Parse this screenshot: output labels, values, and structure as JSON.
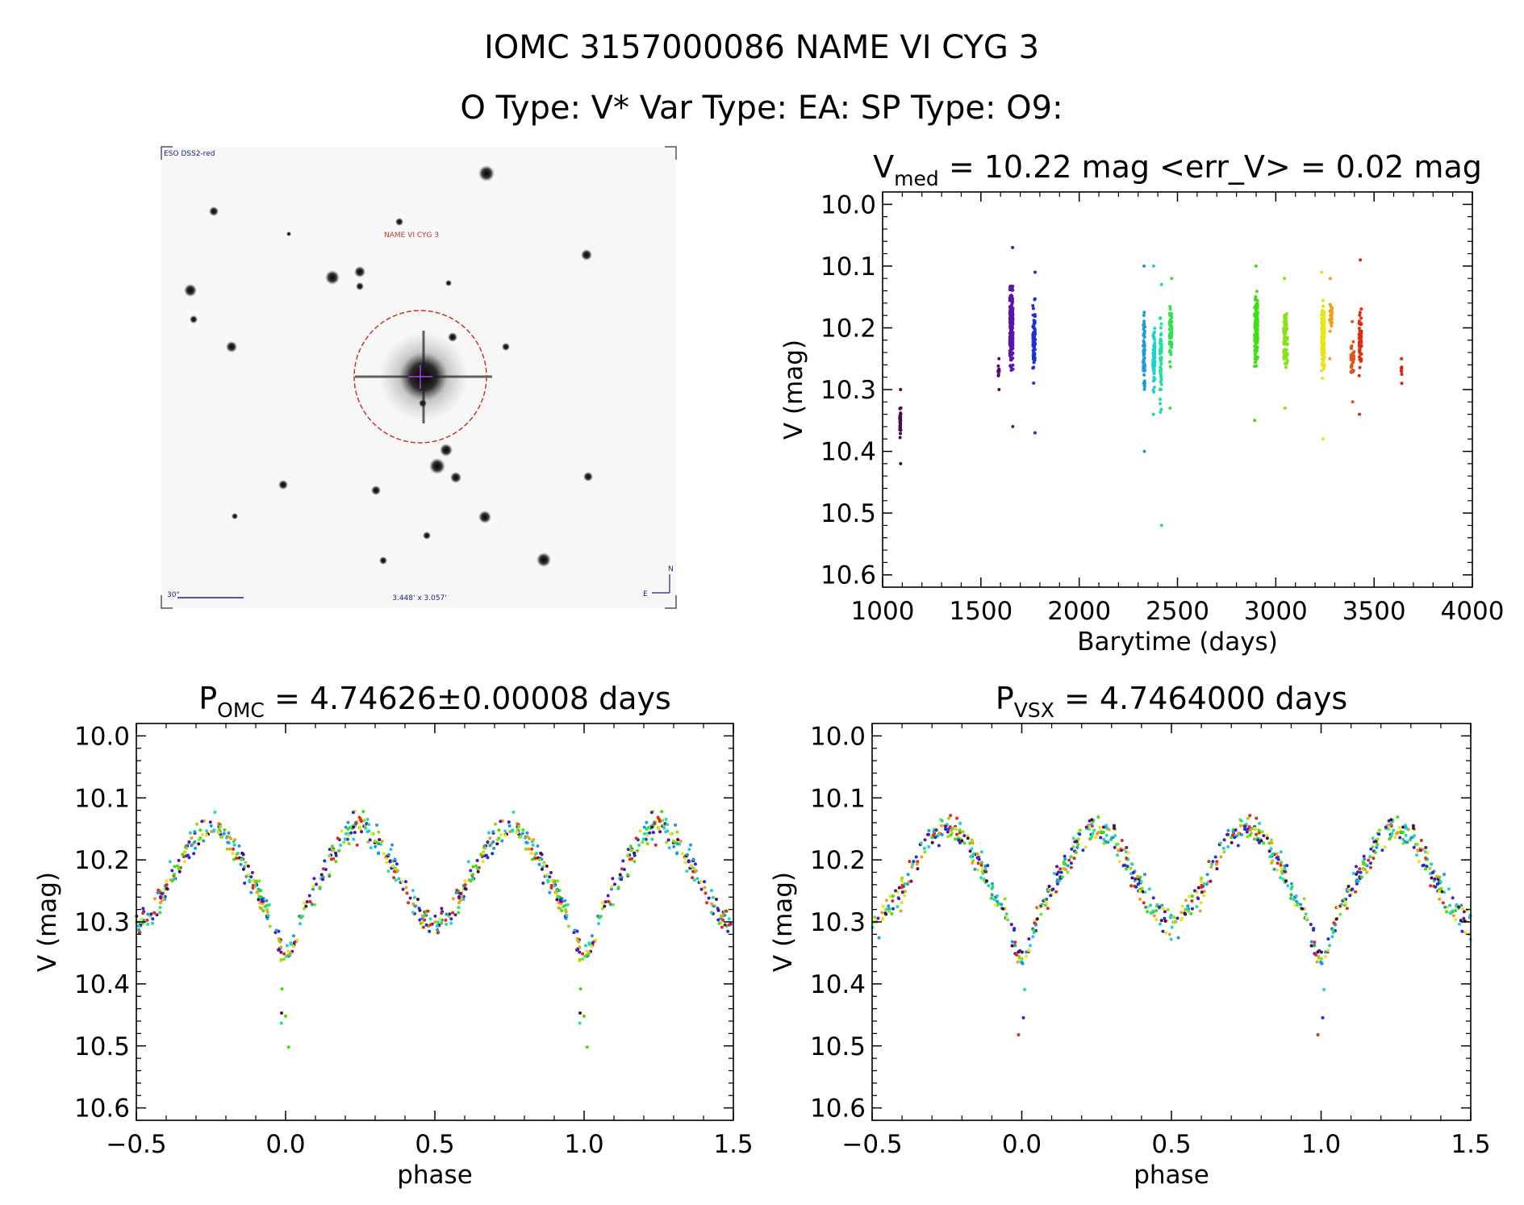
{
  "header": {
    "title_line1": "IOMC 3157000086   NAME VI CYG 3",
    "title_line2": "O Type: V*  Var Type: EA:  SP Type: O9:"
  },
  "finder": {
    "survey_label": "ESO DSS2-red",
    "target_label": "NAME VI CYG 3",
    "scale_label": "30\"",
    "fov_label": "3.448' x 3.057'",
    "north_label": "N",
    "east_label": "E",
    "marker_color": "#c0392b",
    "crosshair_color": "#b23aee",
    "label_color": "#1a237e"
  },
  "chart_data": [
    {
      "id": "light_curve",
      "type": "scatter",
      "title_prefix": "V",
      "title_sub": "med",
      "title_rest": " = 10.22 mag <err_V> = 0.02 mag",
      "xlabel": "Barytime (days)",
      "ylabel": "V (mag)",
      "xlim": [
        1000,
        4000
      ],
      "ylim": [
        10.62,
        9.98
      ],
      "xticks": [
        1000,
        1500,
        2000,
        2500,
        3000,
        3500,
        4000
      ],
      "xtick_labels": [
        "1000",
        "1500",
        "2000",
        "2500",
        "3000",
        "3500",
        "4000"
      ],
      "yticks": [
        10.0,
        10.1,
        10.2,
        10.3,
        10.4,
        10.5,
        10.6
      ],
      "ytick_labels": [
        "10.0",
        "10.1",
        "10.2",
        "10.3",
        "10.4",
        "10.5",
        "10.6"
      ],
      "series": [
        {
          "name": "t1090",
          "x_center": 1090,
          "x_spread": 4,
          "y_min": 10.3,
          "y_max": 10.42,
          "y_mid": 10.35,
          "count": 30,
          "color": "#4b0a4b"
        },
        {
          "name": "t1590",
          "x_center": 1590,
          "x_spread": 3,
          "y_min": 10.25,
          "y_max": 10.3,
          "y_mid": 10.27,
          "count": 12,
          "color": "#560a70"
        },
        {
          "name": "t1655",
          "x_center": 1655,
          "x_spread": 8,
          "y_min": 10.07,
          "y_max": 10.36,
          "y_mid": 10.2,
          "count": 220,
          "color": "#5a14a8"
        },
        {
          "name": "t1770",
          "x_center": 1770,
          "x_spread": 6,
          "y_min": 10.11,
          "y_max": 10.37,
          "y_mid": 10.22,
          "count": 90,
          "color": "#1d2fe0"
        },
        {
          "name": "t2330",
          "x_center": 2330,
          "x_spread": 4,
          "y_min": 10.1,
          "y_max": 10.4,
          "y_mid": 10.24,
          "count": 70,
          "color": "#1b9ae0"
        },
        {
          "name": "t2380",
          "x_center": 2380,
          "x_spread": 5,
          "y_min": 10.1,
          "y_max": 10.34,
          "y_mid": 10.25,
          "count": 60,
          "color": "#1fd0d0"
        },
        {
          "name": "t2415",
          "x_center": 2415,
          "x_spread": 4,
          "y_min": 10.13,
          "y_max": 10.52,
          "y_mid": 10.24,
          "count": 60,
          "color": "#1fe0a0"
        },
        {
          "name": "t2465",
          "x_center": 2465,
          "x_spread": 6,
          "y_min": 10.12,
          "y_max": 10.33,
          "y_mid": 10.21,
          "count": 70,
          "color": "#32e050"
        },
        {
          "name": "t2900",
          "x_center": 2900,
          "x_spread": 8,
          "y_min": 10.1,
          "y_max": 10.35,
          "y_mid": 10.2,
          "count": 130,
          "color": "#3ce10f"
        },
        {
          "name": "t3050",
          "x_center": 3050,
          "x_spread": 10,
          "y_min": 10.12,
          "y_max": 10.33,
          "y_mid": 10.22,
          "count": 80,
          "color": "#8ae01a"
        },
        {
          "name": "t3240",
          "x_center": 3240,
          "x_spread": 8,
          "y_min": 10.11,
          "y_max": 10.38,
          "y_mid": 10.22,
          "count": 140,
          "color": "#e8e41a"
        },
        {
          "name": "t3280",
          "x_center": 3280,
          "x_spread": 6,
          "y_min": 10.12,
          "y_max": 10.25,
          "y_mid": 10.18,
          "count": 30,
          "color": "#f0a016"
        },
        {
          "name": "t3390",
          "x_center": 3390,
          "x_spread": 8,
          "y_min": 10.19,
          "y_max": 10.32,
          "y_mid": 10.25,
          "count": 40,
          "color": "#e0561a"
        },
        {
          "name": "t3430",
          "x_center": 3430,
          "x_spread": 6,
          "y_min": 10.09,
          "y_max": 10.34,
          "y_mid": 10.22,
          "count": 70,
          "color": "#e02c10"
        },
        {
          "name": "t3640",
          "x_center": 3640,
          "x_spread": 2,
          "y_min": 10.25,
          "y_max": 10.29,
          "y_mid": 10.27,
          "count": 8,
          "color": "#e0200c"
        }
      ]
    },
    {
      "id": "phase_omc",
      "type": "scatter",
      "title_prefix": "P",
      "title_sub": "OMC",
      "title_rest": " = 4.74626±0.00008 days",
      "xlabel": "phase",
      "ylabel": "V (mag)",
      "xlim": [
        -0.5,
        1.5
      ],
      "ylim": [
        10.62,
        9.98
      ],
      "xticks": [
        -0.5,
        0.0,
        0.5,
        1.0,
        1.5
      ],
      "xtick_labels": [
        "−0.5",
        "0.0",
        "0.5",
        "1.0",
        "1.5"
      ],
      "yticks": [
        10.0,
        10.1,
        10.2,
        10.3,
        10.4,
        10.5,
        10.6
      ],
      "ytick_labels": [
        "10.0",
        "10.1",
        "10.2",
        "10.3",
        "10.4",
        "10.5",
        "10.6"
      ],
      "curve_model": {
        "mean": 10.225,
        "amplitude": 0.085,
        "secondary_phase": 0.5,
        "primary_depth": 0.06,
        "max_phase_1": 0.25,
        "max_phase_2": 0.75
      },
      "series_colors": [
        "#4b0a4b",
        "#5a14a8",
        "#1d2fe0",
        "#1b9ae0",
        "#1fd0d0",
        "#1fe0a0",
        "#3ce10f",
        "#8ae01a",
        "#e8e41a",
        "#f0a016",
        "#e02c10"
      ],
      "points_per_cycle": 420
    },
    {
      "id": "phase_vsx",
      "type": "scatter",
      "title_prefix": "P",
      "title_sub": "VSX",
      "title_rest": " = 4.7464000 days",
      "xlabel": "phase",
      "ylabel": "V (mag)",
      "xlim": [
        -0.5,
        1.5
      ],
      "ylim": [
        10.62,
        9.98
      ],
      "xticks": [
        -0.5,
        0.0,
        0.5,
        1.0,
        1.5
      ],
      "xtick_labels": [
        "−0.5",
        "0.0",
        "0.5",
        "1.0",
        "1.5"
      ],
      "yticks": [
        10.0,
        10.1,
        10.2,
        10.3,
        10.4,
        10.5,
        10.6
      ],
      "ytick_labels": [
        "10.0",
        "10.1",
        "10.2",
        "10.3",
        "10.4",
        "10.5",
        "10.6"
      ],
      "curve_model": {
        "mean": 10.225,
        "amplitude": 0.085,
        "secondary_phase": 0.5,
        "primary_depth": 0.06,
        "max_phase_1": 0.25,
        "max_phase_2": 0.75
      },
      "series_colors": [
        "#4b0a4b",
        "#5a14a8",
        "#1d2fe0",
        "#1b9ae0",
        "#1fd0d0",
        "#1fe0a0",
        "#3ce10f",
        "#8ae01a",
        "#e8e41a",
        "#f0a016",
        "#e02c10"
      ],
      "points_per_cycle": 420
    }
  ]
}
